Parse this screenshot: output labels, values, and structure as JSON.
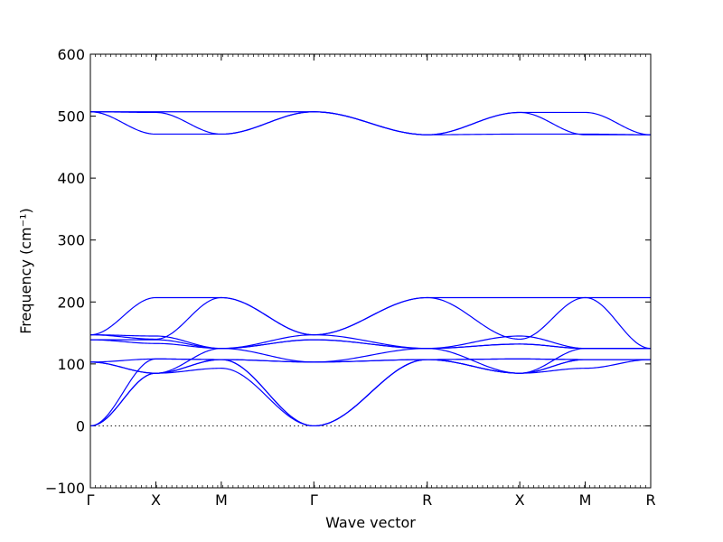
{
  "chart_data": {
    "type": "line",
    "xlabel": "Wave vector",
    "ylabel": "Frequency (cm⁻¹)",
    "ylim": [
      -100,
      600
    ],
    "y_ticks": [
      -100,
      0,
      100,
      200,
      300,
      400,
      500,
      600
    ],
    "y_tick_labels": [
      "−100",
      "0",
      "100",
      "200",
      "300",
      "400",
      "500",
      "600"
    ],
    "x_ticks": [
      {
        "pos": 0.0,
        "label": "Γ"
      },
      {
        "pos": 1.0,
        "label": "X"
      },
      {
        "pos": 2.0,
        "label": "M"
      },
      {
        "pos": 3.414,
        "label": "Γ"
      },
      {
        "pos": 5.146,
        "label": "R"
      },
      {
        "pos": 6.56,
        "label": "X"
      },
      {
        "pos": 7.56,
        "label": "M"
      },
      {
        "pos": 8.56,
        "label": "R"
      }
    ],
    "xlim": [
      0,
      8.56
    ],
    "line_color": "#0000ff",
    "zero_line": {
      "y": 0,
      "style": "dotted",
      "color": "#000000"
    },
    "series": [
      {
        "x": [
          0,
          1,
          2,
          3.414,
          5.146,
          6.56,
          7.56,
          8.56
        ],
        "values": [
          507,
          507,
          507,
          507,
          470,
          506,
          506,
          470
        ]
      },
      {
        "x": [
          0,
          1,
          2,
          3.414,
          5.146,
          6.56,
          7.56,
          8.56
        ],
        "values": [
          507,
          471,
          471,
          507,
          470,
          471,
          471,
          470
        ]
      },
      {
        "x": [
          0,
          1,
          2,
          3.414,
          5.146,
          6.56,
          7.56,
          8.56
        ],
        "values": [
          507,
          506,
          471,
          507,
          470,
          506,
          470,
          470
        ]
      },
      {
        "x": [
          0,
          1,
          2,
          3.414,
          5.146,
          6.56,
          7.56,
          8.56
        ],
        "values": [
          147,
          207,
          207,
          147,
          207,
          207,
          207,
          207
        ]
      },
      {
        "x": [
          0,
          1,
          2,
          3.414,
          5.146,
          6.56,
          7.56,
          8.56
        ],
        "values": [
          147,
          140,
          207,
          147,
          207,
          140,
          207,
          125
        ]
      },
      {
        "x": [
          0,
          1,
          2,
          3.414,
          5.146,
          6.56,
          7.56,
          8.56
        ],
        "values": [
          147,
          145,
          125,
          147,
          125,
          145,
          125,
          125
        ]
      },
      {
        "x": [
          0,
          1,
          2,
          3.414,
          5.146,
          6.56,
          7.56,
          8.56
        ],
        "values": [
          139,
          139,
          125,
          139,
          125,
          132,
          125,
          125
        ]
      },
      {
        "x": [
          0,
          1,
          2,
          3.414,
          5.146,
          6.56,
          7.56,
          8.56
        ],
        "values": [
          139,
          133,
          125,
          139,
          125,
          132,
          125,
          125
        ]
      },
      {
        "x": [
          0,
          1,
          2,
          3.414,
          5.146,
          6.56,
          7.56,
          8.56
        ],
        "values": [
          103,
          85,
          125,
          103,
          125,
          85,
          125,
          125
        ]
      },
      {
        "x": [
          0,
          1,
          2,
          3.414,
          5.146,
          6.56,
          7.56,
          8.56
        ],
        "values": [
          103,
          85,
          107,
          103,
          107,
          85,
          107,
          107
        ]
      },
      {
        "x": [
          0,
          1,
          2,
          3.414,
          5.146,
          6.56,
          7.56,
          8.56
        ],
        "values": [
          103,
          108,
          107,
          103,
          107,
          108,
          107,
          107
        ]
      },
      {
        "x": [
          0,
          1,
          2,
          3.414,
          5.146,
          6.56,
          7.56,
          8.56
        ],
        "values": [
          0,
          108,
          107,
          0,
          107,
          108,
          107,
          107
        ]
      },
      {
        "x": [
          0,
          1,
          2,
          3.414,
          5.146,
          6.56,
          7.56,
          8.56
        ],
        "values": [
          0,
          85,
          107,
          0,
          107,
          85,
          107,
          107
        ]
      },
      {
        "x": [
          0,
          1,
          2,
          3.414,
          5.146,
          6.56,
          7.56,
          8.56
        ],
        "values": [
          0,
          85,
          93,
          0,
          107,
          85,
          93,
          107
        ]
      }
    ]
  }
}
